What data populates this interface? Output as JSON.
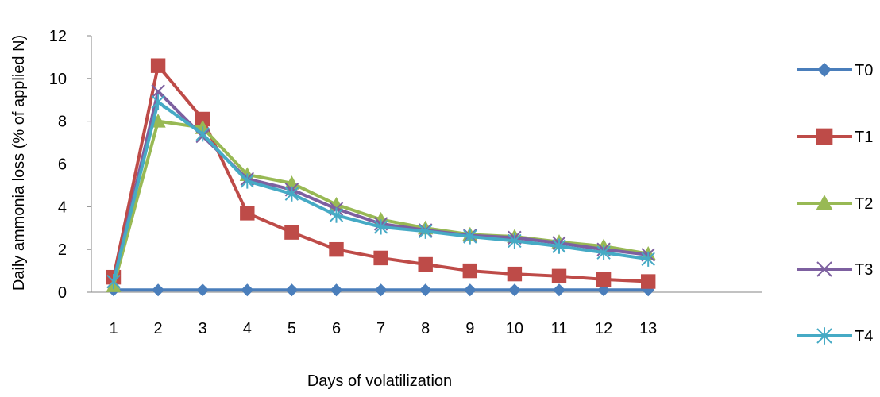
{
  "chart_data": {
    "type": "line",
    "title": "",
    "xlabel": "Days of volatilization",
    "ylabel": "Daily ammonia loss (% of applied N)",
    "categories": [
      "1",
      "2",
      "3",
      "4",
      "5",
      "6",
      "7",
      "8",
      "9",
      "10",
      "11",
      "12",
      "13"
    ],
    "ylim": [
      0,
      12
    ],
    "yticks": [
      "0",
      "2",
      "4",
      "6",
      "8",
      "10",
      "12"
    ],
    "grid": false,
    "legend_position": "right",
    "series": [
      {
        "name": "T0",
        "marker": "diamond",
        "color": "#4A7EBB",
        "values": [
          0.1,
          0.1,
          0.1,
          0.1,
          0.1,
          0.1,
          0.1,
          0.1,
          0.1,
          0.1,
          0.1,
          0.1,
          0.1
        ]
      },
      {
        "name": "T1",
        "marker": "square",
        "color": "#BE4B48",
        "values": [
          0.7,
          10.6,
          8.1,
          3.7,
          2.8,
          2.0,
          1.6,
          1.3,
          1.0,
          0.85,
          0.75,
          0.6,
          0.5
        ]
      },
      {
        "name": "T2",
        "marker": "triangle",
        "color": "#98B954",
        "values": [
          0.3,
          8.0,
          7.7,
          5.5,
          5.1,
          4.1,
          3.4,
          3.0,
          2.7,
          2.6,
          2.35,
          2.15,
          1.8
        ]
      },
      {
        "name": "T3",
        "marker": "x",
        "color": "#7D60A0",
        "values": [
          0.5,
          9.4,
          7.3,
          5.3,
          4.8,
          3.9,
          3.2,
          2.9,
          2.65,
          2.55,
          2.3,
          2.0,
          1.75
        ]
      },
      {
        "name": "T4",
        "marker": "star",
        "color": "#46AAC5",
        "values": [
          0.5,
          8.9,
          7.4,
          5.2,
          4.6,
          3.6,
          3.05,
          2.85,
          2.6,
          2.4,
          2.15,
          1.85,
          1.55
        ]
      }
    ]
  }
}
